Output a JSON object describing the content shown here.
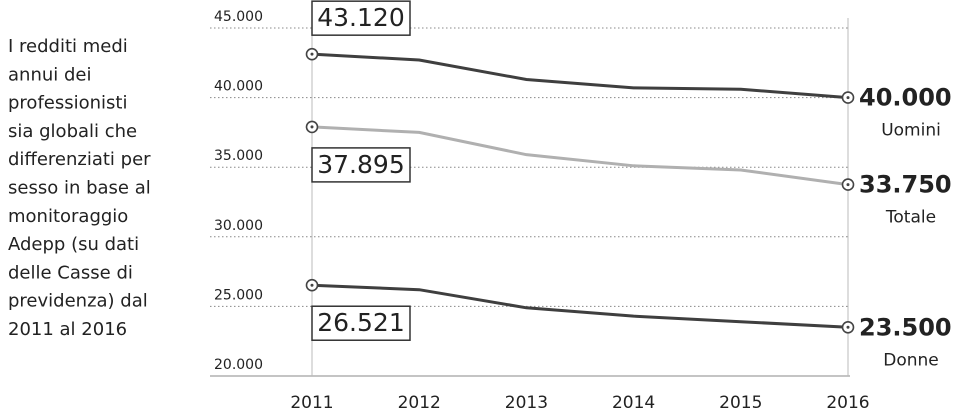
{
  "chart_data": {
    "type": "line",
    "description": [
      "I redditi medi",
      "annui dei",
      "professionisti",
      "sia globali che",
      "differenziati per",
      "sesso in base al",
      "monitoraggio",
      "Adepp (su dati",
      "delle Casse di",
      "previdenza) dal",
      "2011 al 2016"
    ],
    "categories": [
      "2011",
      "2012",
      "2013",
      "2014",
      "2015",
      "2016"
    ],
    "series": [
      {
        "name": "Uomini",
        "color": "#3f3f3f",
        "label_color": "#3f3f3f",
        "values": [
          43120,
          42700,
          41300,
          40700,
          40600,
          40000
        ],
        "value_labels": [
          "43.120",
          null,
          null,
          null,
          null,
          "40.000"
        ]
      },
      {
        "name": "Totale",
        "color": "#b0b0b0",
        "label_color": "#b0b0b0",
        "values": [
          37895,
          37500,
          35900,
          35100,
          34800,
          33750
        ],
        "value_labels": [
          "37.895",
          null,
          null,
          null,
          null,
          "33.750"
        ]
      },
      {
        "name": "Donne",
        "color": "#3f3f3f",
        "label_color": "#3f3f3f",
        "values": [
          26521,
          26200,
          24900,
          24300,
          23900,
          23500
        ],
        "value_labels": [
          "26.521",
          null,
          null,
          null,
          null,
          "23.500"
        ]
      }
    ],
    "ylim": [
      20000,
      45000
    ],
    "yticks": [
      {
        "value": 20000,
        "label": "20.000"
      },
      {
        "value": 25000,
        "label": "25.000"
      },
      {
        "value": 30000,
        "label": "30.000"
      },
      {
        "value": 35000,
        "label": "35.000"
      },
      {
        "value": 40000,
        "label": "40.000"
      },
      {
        "value": 45000,
        "label": "45.000"
      }
    ],
    "grid": true
  }
}
